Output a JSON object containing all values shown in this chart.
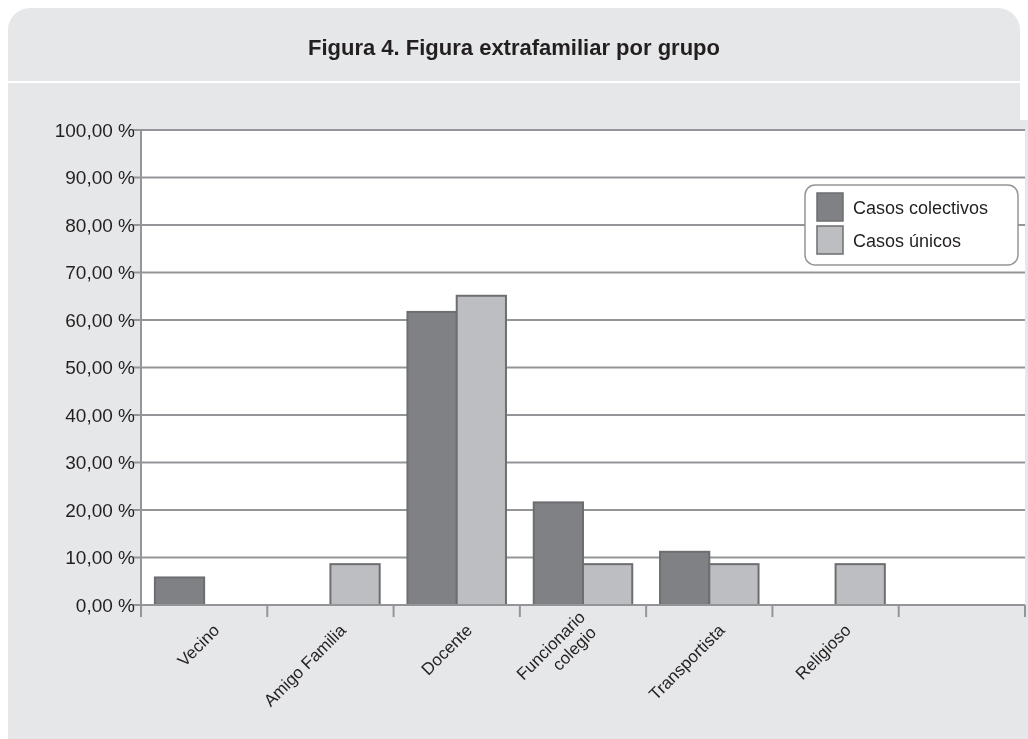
{
  "chart_data": {
    "type": "bar",
    "title": "Figura 4. Figura extrafamiliar por grupo",
    "categories": [
      "Vecino",
      "Amigo Familia",
      "Docente",
      "Funcionario\ncolegio",
      "Transportista",
      "Religioso",
      null
    ],
    "series": [
      {
        "name": "Casos colectivos",
        "color": "#808185",
        "values": [
          5.8,
          null,
          61.7,
          21.6,
          11.2,
          null,
          null
        ]
      },
      {
        "name": "Casos únicos",
        "color": "#bdbec2",
        "values": [
          null,
          8.6,
          65.1,
          8.6,
          8.6,
          8.6,
          null
        ]
      }
    ],
    "ylim": [
      0,
      100
    ],
    "yticks": [
      {
        "value": 0,
        "label": "0,00 %"
      },
      {
        "value": 10,
        "label": "10,00 %"
      },
      {
        "value": 20,
        "label": "20,00 %"
      },
      {
        "value": 30,
        "label": "30,00 %"
      },
      {
        "value": 40,
        "label": "40,00 %"
      },
      {
        "value": 50,
        "label": "50,00 %"
      },
      {
        "value": 60,
        "label": "60,00 %"
      },
      {
        "value": 70,
        "label": "70,00 %"
      },
      {
        "value": 80,
        "label": "80,00 %"
      },
      {
        "value": 90,
        "label": "90,00 %"
      },
      {
        "value": 100,
        "label": "100,00 %"
      }
    ],
    "grid": "y",
    "legend": "top right"
  }
}
